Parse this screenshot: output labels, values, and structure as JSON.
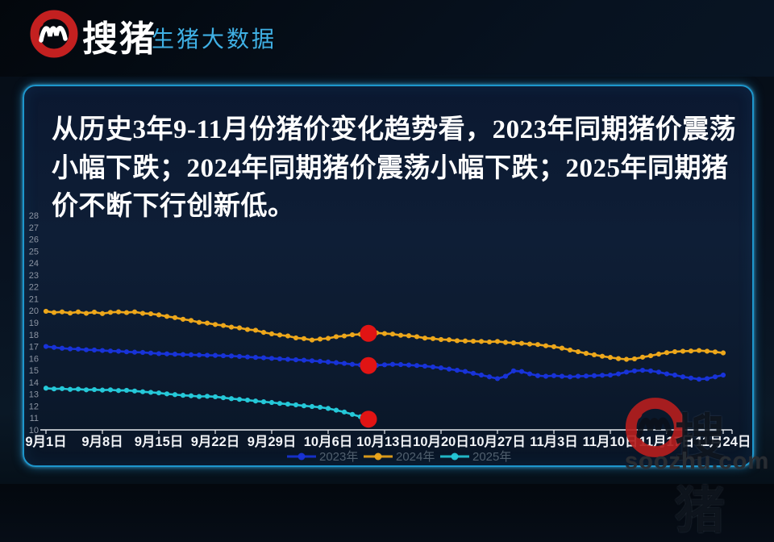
{
  "header": {
    "brand_cn": "搜猪",
    "product": "生猪大数据"
  },
  "panel": {
    "title": "从历史3年9-11月份猪价变化趋势看，2023年同期猪价震荡小幅下跌；2024年同期猪价震荡小幅下跌；2025年同期猪价不断下行创新低。"
  },
  "watermark": {
    "brand_cn": "搜猪",
    "site": "soozhu.com"
  },
  "colors": {
    "panel_border": "#1d96cc",
    "title_text": "#ffffff",
    "product_text": "#3fb0e4",
    "logo_red": "#c32020",
    "axis_label": "#8d95a3",
    "x_label": "#f2f4f7",
    "legend_text": "#5d6c7a",
    "highlight": "#e11414"
  },
  "chart_data": {
    "type": "line",
    "title": "",
    "xlabel": "",
    "ylabel": "",
    "ylim": [
      10,
      28
    ],
    "y_ticks": [
      10,
      11,
      12,
      13,
      14,
      15,
      16,
      17,
      18,
      19,
      20,
      21,
      22,
      23,
      24,
      25,
      26,
      27,
      28
    ],
    "x_tick_labels": [
      "9月1日",
      "9月8日",
      "9月15日",
      "9月22日",
      "9月29日",
      "10月6日",
      "10月13日",
      "10月20日",
      "10月27日",
      "11月3日",
      "11月10日",
      "11月17日",
      "11月24日"
    ],
    "x_days_per_tick": 7,
    "grid": false,
    "legend_position": "bottom",
    "highlight_color": "#e11414",
    "series": [
      {
        "name": "2023年",
        "color": "#1833d8",
        "highlight_index": 40,
        "values": [
          17.0,
          16.92,
          16.85,
          16.8,
          16.78,
          16.72,
          16.7,
          16.66,
          16.62,
          16.6,
          16.55,
          16.52,
          16.5,
          16.45,
          16.4,
          16.38,
          16.35,
          16.32,
          16.3,
          16.28,
          16.26,
          16.25,
          16.22,
          16.2,
          16.16,
          16.12,
          16.08,
          16.05,
          16.0,
          15.96,
          15.92,
          15.88,
          15.85,
          15.8,
          15.75,
          15.7,
          15.64,
          15.58,
          15.5,
          15.45,
          15.4,
          15.42,
          15.46,
          15.5,
          15.48,
          15.44,
          15.4,
          15.35,
          15.28,
          15.2,
          15.1,
          15.0,
          14.9,
          14.75,
          14.6,
          14.45,
          14.3,
          14.5,
          14.95,
          14.9,
          14.7,
          14.55,
          14.5,
          14.55,
          14.5,
          14.45,
          14.5,
          14.52,
          14.55,
          14.58,
          14.6,
          14.7,
          14.85,
          14.95,
          15.0,
          14.95,
          14.85,
          14.7,
          14.6,
          14.45,
          14.35,
          14.25,
          14.3,
          14.45,
          14.6
        ]
      },
      {
        "name": "2024年",
        "color": "#eda71b",
        "highlight_index": 40,
        "values": [
          19.95,
          19.85,
          19.9,
          19.8,
          19.9,
          19.78,
          19.88,
          19.76,
          19.86,
          19.9,
          19.84,
          19.9,
          19.78,
          19.74,
          19.65,
          19.52,
          19.42,
          19.28,
          19.18,
          19.02,
          18.96,
          18.84,
          18.76,
          18.62,
          18.56,
          18.42,
          18.36,
          18.18,
          18.06,
          17.96,
          17.88,
          17.72,
          17.66,
          17.54,
          17.62,
          17.68,
          17.82,
          17.88,
          17.98,
          18.02,
          18.1,
          18.14,
          18.08,
          18.04,
          17.94,
          17.9,
          17.82,
          17.7,
          17.66,
          17.58,
          17.56,
          17.48,
          17.46,
          17.44,
          17.42,
          17.38,
          17.42,
          17.34,
          17.3,
          17.26,
          17.2,
          17.16,
          17.06,
          16.98,
          16.86,
          16.7,
          16.56,
          16.42,
          16.3,
          16.18,
          16.08,
          15.98,
          15.92,
          15.96,
          16.1,
          16.22,
          16.36,
          16.48,
          16.56,
          16.6,
          16.62,
          16.66,
          16.6,
          16.54,
          16.46
        ]
      },
      {
        "name": "2025年",
        "color": "#25c8d8",
        "highlight_index": 40,
        "values": [
          13.5,
          13.44,
          13.46,
          13.4,
          13.42,
          13.36,
          13.38,
          13.34,
          13.36,
          13.3,
          13.32,
          13.26,
          13.2,
          13.15,
          13.1,
          13.02,
          12.96,
          12.9,
          12.86,
          12.8,
          12.82,
          12.78,
          12.7,
          12.62,
          12.56,
          12.5,
          12.42,
          12.36,
          12.3,
          12.22,
          12.16,
          12.1,
          12.02,
          11.96,
          11.9,
          11.8,
          11.65,
          11.5,
          11.3,
          11.1,
          10.9
        ]
      }
    ]
  }
}
